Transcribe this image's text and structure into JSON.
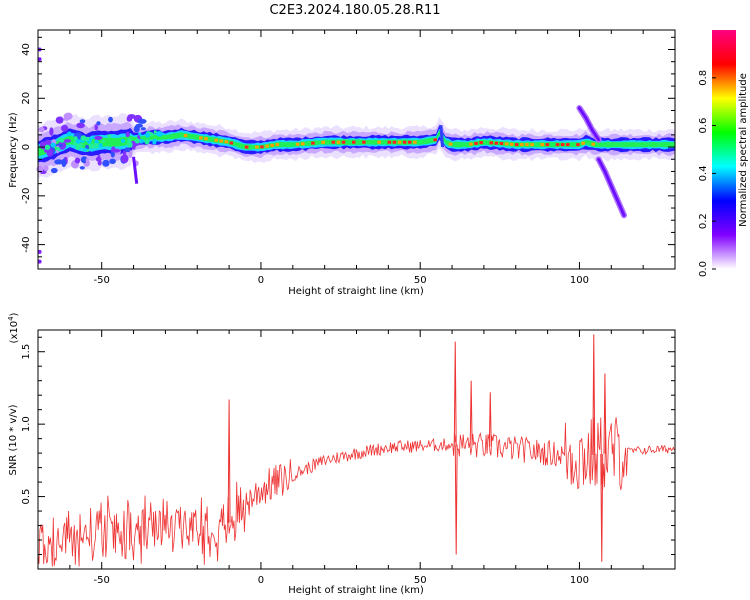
{
  "title": "C2E3.2024.180.05.28.R11",
  "chart_data": [
    {
      "type": "heatmap",
      "xlabel": "Height of straight line (km)",
      "ylabel": "Frequency (Hz)",
      "xlim": [
        -70,
        130
      ],
      "ylim": [
        -50,
        48
      ],
      "xticks": [
        -50,
        0,
        50,
        100
      ],
      "xtick_labels": [
        "-50",
        "0",
        "50",
        "100"
      ],
      "yticks": [
        -40,
        -20,
        0,
        20,
        40
      ],
      "ytick_labels": [
        "-40",
        "-20",
        "0",
        "20",
        "40"
      ],
      "colorbar": {
        "label": "Normalized spectral amplitude",
        "range": [
          0,
          1
        ],
        "ticks": [
          0,
          0.2,
          0.4,
          0.6,
          0.8
        ],
        "tick_labels": [
          "0.0",
          "0.2",
          "0.4",
          "0.6",
          "0.8"
        ],
        "colors": [
          "#ffffff",
          "#8000ff",
          "#0000ff",
          "#00ffff",
          "#00ff00",
          "#ffff00",
          "#ff0000",
          "#ff0080"
        ]
      },
      "ridge": {
        "x": [
          -70,
          -65,
          -60,
          -55,
          -50,
          -45,
          -40,
          -35,
          -30,
          -25,
          -20,
          -15,
          -10,
          -5,
          0,
          5,
          10,
          20,
          30,
          40,
          50,
          55,
          56,
          58,
          60,
          65,
          70,
          80,
          90,
          100,
          102,
          105,
          110,
          120,
          130
        ],
        "y": [
          -2,
          0,
          3,
          1,
          2,
          2,
          3,
          4,
          4,
          5,
          4,
          3,
          2,
          0,
          0,
          1,
          1,
          2,
          2,
          2,
          2,
          3,
          6,
          2,
          1,
          1,
          2,
          1,
          1,
          1,
          2,
          1,
          1,
          1,
          1
        ]
      },
      "branches": [
        {
          "x": [
            100,
            102,
            104,
            106
          ],
          "y": [
            16,
            12,
            7,
            3
          ]
        },
        {
          "x": [
            106,
            108,
            110,
            112,
            114
          ],
          "y": [
            -5,
            -10,
            -16,
            -22,
            -28
          ]
        }
      ]
    },
    {
      "type": "line",
      "xlabel": "Height of straight line (km)",
      "ylabel": "SNR (10 * v/v)",
      "yscale_label": "(x10",
      "yscale_exp": "4",
      "yscale_close": ")",
      "xlim": [
        -70,
        130
      ],
      "ylim": [
        0,
        1.65
      ],
      "xticks": [
        -50,
        0,
        50,
        100
      ],
      "xtick_labels": [
        "-50",
        "0",
        "50",
        "100"
      ],
      "yticks": [
        0.5,
        1.0,
        1.5
      ],
      "ytick_labels": [
        "0.5",
        "1.0",
        "1.5"
      ],
      "color": "#ee3333",
      "trend": {
        "x": [
          -70,
          -60,
          -50,
          -40,
          -30,
          -20,
          -10,
          -5,
          0,
          10,
          20,
          30,
          40,
          50,
          60,
          70,
          80,
          90,
          100,
          110,
          120,
          130
        ],
        "y": [
          0.15,
          0.2,
          0.25,
          0.22,
          0.28,
          0.3,
          0.32,
          0.45,
          0.55,
          0.65,
          0.75,
          0.8,
          0.84,
          0.85,
          0.86,
          0.85,
          0.83,
          0.8,
          0.78,
          0.8,
          0.82,
          0.83
        ]
      },
      "spikes": [
        {
          "x": -10,
          "y": 1.17
        },
        {
          "x": 61,
          "y": 1.57
        },
        {
          "x": 61.3,
          "y": 0.1
        },
        {
          "x": 66,
          "y": 1.3
        },
        {
          "x": 72,
          "y": 1.22
        },
        {
          "x": 104.5,
          "y": 1.62
        },
        {
          "x": 107,
          "y": 0.05
        },
        {
          "x": 108,
          "y": 1.35
        }
      ]
    }
  ]
}
